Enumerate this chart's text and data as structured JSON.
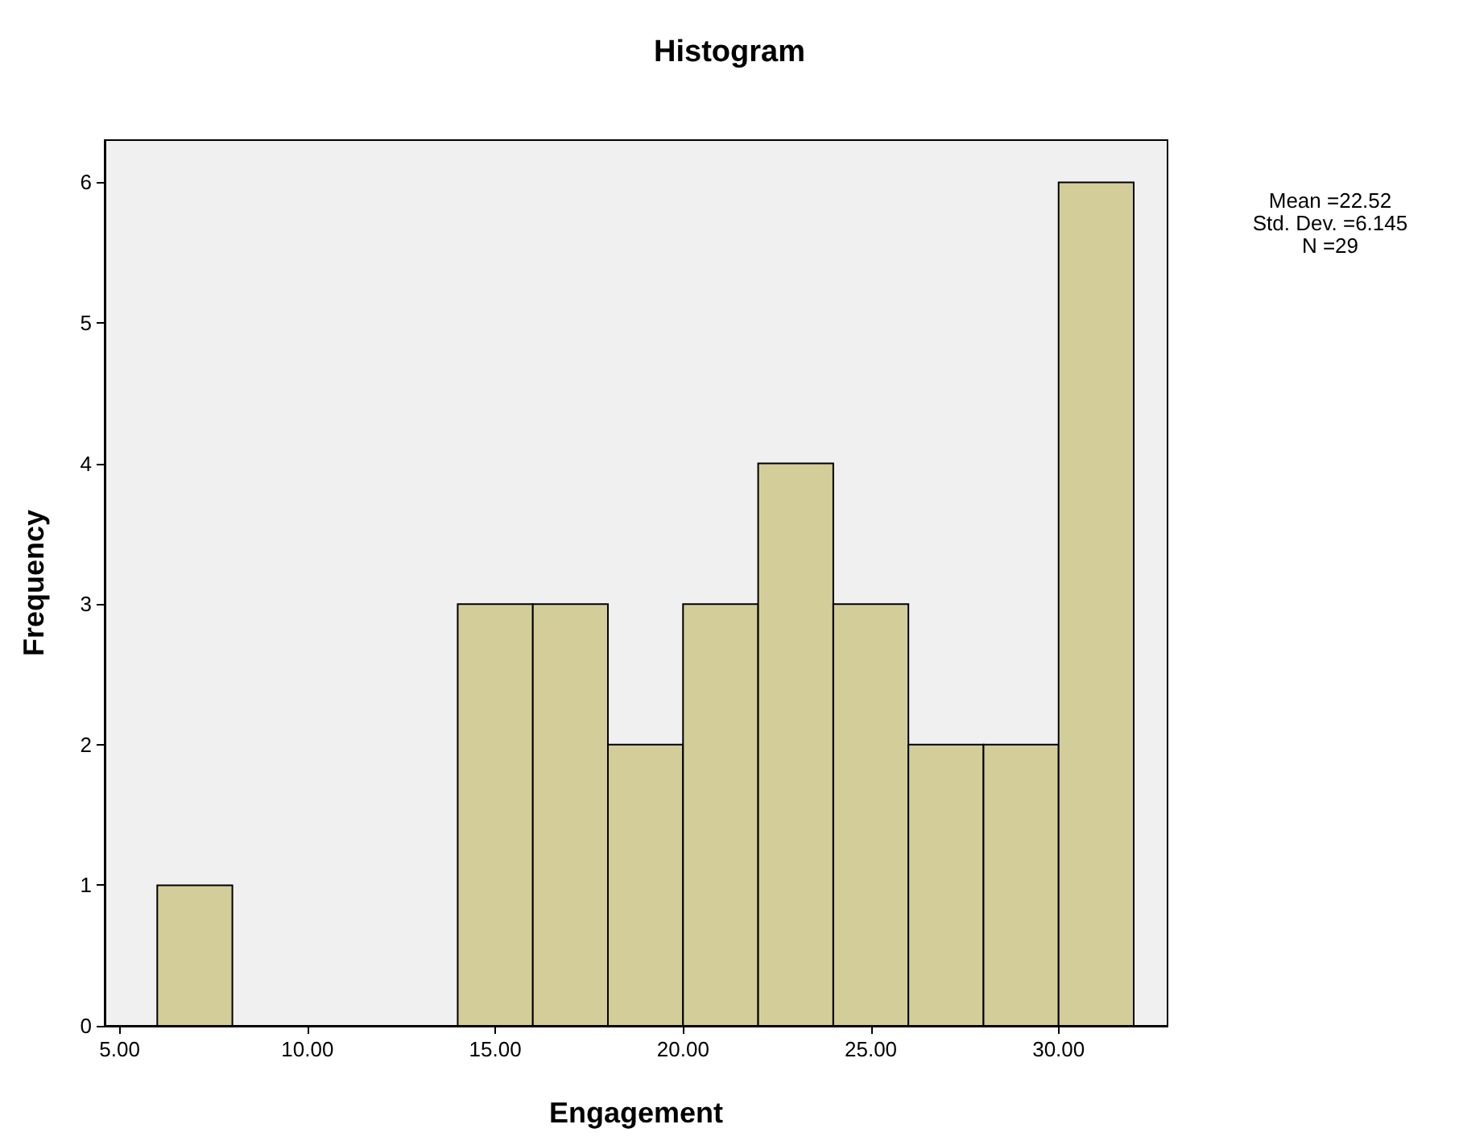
{
  "chart_data": {
    "type": "histogram",
    "title": "Histogram",
    "xlabel": "Engagement",
    "ylabel": "Frequency",
    "bins": [
      6,
      8,
      10,
      12,
      14,
      16,
      18,
      20,
      22,
      24,
      26,
      28,
      30,
      32
    ],
    "values": [
      1,
      0,
      0,
      0,
      3,
      3,
      2,
      3,
      4,
      3,
      2,
      2,
      6
    ],
    "color": "#d3ce99",
    "xlim": [
      4.6,
      32.9
    ],
    "xticks": [
      {
        "value": 5,
        "label": "5.00"
      },
      {
        "value": 10,
        "label": "10.00"
      },
      {
        "value": 15,
        "label": "15.00"
      },
      {
        "value": 20,
        "label": "20.00"
      },
      {
        "value": 25,
        "label": "25.00"
      },
      {
        "value": 30,
        "label": "30.00"
      }
    ],
    "ylim": [
      0,
      6.3
    ],
    "yticks": [
      0,
      1,
      2,
      3,
      4,
      5,
      6
    ],
    "annotations": [
      "Mean =22.52",
      "Std. Dev. =6.145",
      "N =29"
    ],
    "grid": false,
    "legend": false
  }
}
